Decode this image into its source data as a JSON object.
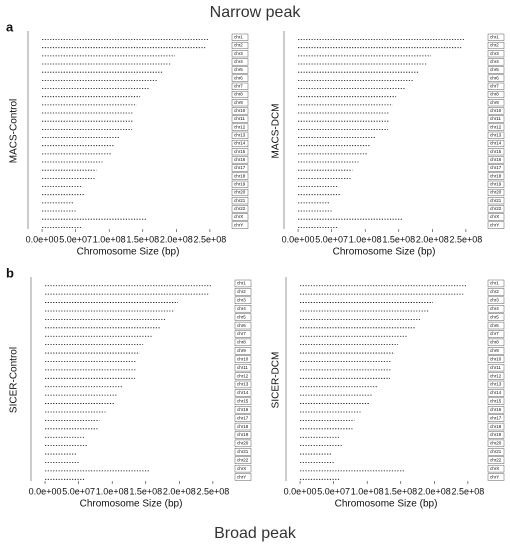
{
  "headings": [
    "Narrow peak",
    "Broad peak"
  ],
  "chart_data": [
    {
      "type": "bar",
      "orientation": "horizontal",
      "panel_label": "a",
      "ylabel": "MACS-Control",
      "xlabel": "Chromosome Size (bp)",
      "categories": [
        "chr1",
        "chr2",
        "chr3",
        "chr4",
        "chr5",
        "chr6",
        "chr7",
        "chr8",
        "chr9",
        "chr10",
        "chr11",
        "chr12",
        "chr13",
        "chr14",
        "chr15",
        "chr16",
        "chr17",
        "chr18",
        "chr19",
        "chr20",
        "chr21",
        "chr22",
        "chrX",
        "chrY"
      ],
      "values": [
        249000000,
        243000000,
        198000000,
        191000000,
        181000000,
        171000000,
        159000000,
        146000000,
        141000000,
        136000000,
        135000000,
        134000000,
        115000000,
        107000000,
        103000000,
        90000000,
        81000000,
        78000000,
        59000000,
        63000000,
        48000000,
        51000000,
        155000000,
        59000000
      ],
      "color": "#000000",
      "xlim": [
        -18000000,
        274000000
      ],
      "xticks": [
        {
          "value": 0,
          "label": "0.0e+00"
        },
        {
          "value": 50000000,
          "label": "5.0e+07"
        },
        {
          "value": 100000000,
          "label": "1.0e+08"
        },
        {
          "value": 150000000,
          "label": "1.5e+08"
        },
        {
          "value": 200000000,
          "label": "2.0e+08"
        },
        {
          "value": 250000000,
          "label": "2.5e+08"
        }
      ]
    },
    {
      "type": "bar",
      "orientation": "horizontal",
      "ylabel": "MACS-DCM",
      "xlabel": "Chromosome Size (bp)",
      "categories": [
        "chr1",
        "chr2",
        "chr3",
        "chr4",
        "chr5",
        "chr6",
        "chr7",
        "chr8",
        "chr9",
        "chr10",
        "chr11",
        "chr12",
        "chr13",
        "chr14",
        "chr15",
        "chr16",
        "chr17",
        "chr18",
        "chr19",
        "chr20",
        "chr21",
        "chr22",
        "chrX",
        "chrY"
      ],
      "values": [
        249000000,
        243000000,
        198000000,
        191000000,
        181000000,
        171000000,
        159000000,
        146000000,
        141000000,
        136000000,
        135000000,
        134000000,
        115000000,
        107000000,
        103000000,
        90000000,
        81000000,
        78000000,
        59000000,
        63000000,
        48000000,
        51000000,
        155000000,
        59000000
      ],
      "color": "#000000",
      "xlim": [
        -18000000,
        274000000
      ],
      "xticks": [
        {
          "value": 0,
          "label": "0.0e+00"
        },
        {
          "value": 50000000,
          "label": "5.0e+07"
        },
        {
          "value": 100000000,
          "label": "1.0e+08"
        },
        {
          "value": 150000000,
          "label": "1.5e+08"
        },
        {
          "value": 200000000,
          "label": "2.0e+08"
        },
        {
          "value": 250000000,
          "label": "2.5e+08"
        }
      ]
    },
    {
      "type": "bar",
      "orientation": "horizontal",
      "panel_label": "b",
      "ylabel": "SICER-Control",
      "xlabel": "Chromosome Size (bp)",
      "categories": [
        "chr1",
        "chr2",
        "chr3",
        "chr4",
        "chr5",
        "chr6",
        "chr7",
        "chr8",
        "chr9",
        "chr10",
        "chr11",
        "chr12",
        "chr13",
        "chr14",
        "chr15",
        "chr16",
        "chr17",
        "chr18",
        "chr19",
        "chr20",
        "chr21",
        "chr22",
        "chrX",
        "chrY"
      ],
      "values": [
        249000000,
        243000000,
        198000000,
        191000000,
        181000000,
        171000000,
        159000000,
        146000000,
        141000000,
        136000000,
        135000000,
        134000000,
        115000000,
        107000000,
        103000000,
        90000000,
        81000000,
        78000000,
        59000000,
        63000000,
        48000000,
        51000000,
        155000000,
        59000000
      ],
      "color": "#000000",
      "xlim": [
        -18000000,
        274000000
      ],
      "xticks": [
        {
          "value": 0,
          "label": "0.0e+00"
        },
        {
          "value": 50000000,
          "label": "5.0e+07"
        },
        {
          "value": 100000000,
          "label": "1.0e+08"
        },
        {
          "value": 150000000,
          "label": "1.5e+08"
        },
        {
          "value": 200000000,
          "label": "2.0e+08"
        },
        {
          "value": 250000000,
          "label": "2.5e+08"
        }
      ]
    },
    {
      "type": "bar",
      "orientation": "horizontal",
      "ylabel": "SICER-DCM",
      "xlabel": "Chromosome Size (bp)",
      "categories": [
        "chr1",
        "chr2",
        "chr3",
        "chr4",
        "chr5",
        "chr6",
        "chr7",
        "chr8",
        "chr9",
        "chr10",
        "chr11",
        "chr12",
        "chr13",
        "chr14",
        "chr15",
        "chr16",
        "chr17",
        "chr18",
        "chr19",
        "chr20",
        "chr21",
        "chr22",
        "chrX",
        "chrY"
      ],
      "values": [
        249000000,
        243000000,
        198000000,
        191000000,
        181000000,
        171000000,
        159000000,
        146000000,
        141000000,
        136000000,
        135000000,
        134000000,
        115000000,
        107000000,
        103000000,
        90000000,
        81000000,
        78000000,
        59000000,
        63000000,
        48000000,
        51000000,
        155000000,
        59000000
      ],
      "color": "#000000",
      "xlim": [
        -18000000,
        274000000
      ],
      "xticks": [
        {
          "value": 0,
          "label": "0.0e+00"
        },
        {
          "value": 50000000,
          "label": "5.0e+07"
        },
        {
          "value": 100000000,
          "label": "1.0e+08"
        },
        {
          "value": 150000000,
          "label": "1.5e+08"
        },
        {
          "value": 200000000,
          "label": "2.0e+08"
        },
        {
          "value": 250000000,
          "label": "2.5e+08"
        }
      ]
    }
  ]
}
